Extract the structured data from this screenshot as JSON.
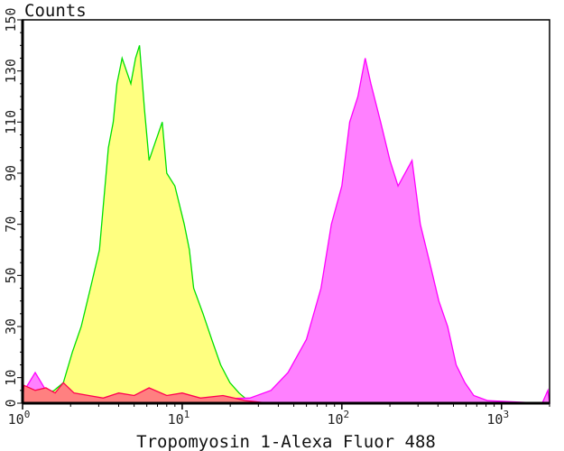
{
  "chart_data": {
    "type": "area",
    "title": "",
    "xlabel": "Tropomyosin 1-Alexa Fluor 488",
    "ylabel": "Counts",
    "x_scale": "log",
    "xlim": [
      1,
      2000
    ],
    "ylim": [
      0,
      150
    ],
    "x_ticks": [
      {
        "v": 1,
        "base": "10",
        "exp": "0"
      },
      {
        "v": 10,
        "base": "10",
        "exp": "1"
      },
      {
        "v": 100,
        "base": "10",
        "exp": "2"
      },
      {
        "v": 1000,
        "base": "10",
        "exp": "3"
      }
    ],
    "y_ticks": [
      "0",
      "10",
      "30",
      "50",
      "70",
      "90",
      "110",
      "130",
      "150"
    ],
    "grid": false,
    "series": [
      {
        "fill": "#ffff80",
        "stroke": "#00e000",
        "points": [
          [
            1,
            0
          ],
          [
            1.58,
            5
          ],
          [
            1.8,
            8
          ],
          [
            2.05,
            20
          ],
          [
            2.33,
            30
          ],
          [
            2.66,
            45
          ],
          [
            3.03,
            60
          ],
          [
            3.45,
            100
          ],
          [
            3.7,
            110
          ],
          [
            3.9,
            125
          ],
          [
            4.2,
            135
          ],
          [
            4.77,
            125
          ],
          [
            5.1,
            135
          ],
          [
            5.4,
            140
          ],
          [
            5.8,
            115
          ],
          [
            6.2,
            95
          ],
          [
            6.6,
            100
          ],
          [
            7.5,
            110
          ],
          [
            8.0,
            90
          ],
          [
            9,
            85
          ],
          [
            10.3,
            70
          ],
          [
            11.1,
            60
          ],
          [
            11.8,
            45
          ],
          [
            13.5,
            35
          ],
          [
            15.3,
            25
          ],
          [
            17.4,
            15
          ],
          [
            19.9,
            8
          ],
          [
            22.7,
            4
          ],
          [
            25.9,
            1
          ],
          [
            30,
            0
          ]
        ]
      },
      {
        "fill": "#ff80ff",
        "stroke": "#ff00ff",
        "points": [
          [
            1,
            0
          ],
          [
            1.05,
            6
          ],
          [
            1.2,
            12
          ],
          [
            1.4,
            5
          ],
          [
            1.7,
            2
          ],
          [
            5,
            1
          ],
          [
            26.5,
            2
          ],
          [
            36,
            5
          ],
          [
            46,
            12
          ],
          [
            60,
            25
          ],
          [
            74,
            45
          ],
          [
            86,
            70
          ],
          [
            100,
            85
          ],
          [
            112,
            110
          ],
          [
            126,
            120
          ],
          [
            140,
            135
          ],
          [
            152,
            125
          ],
          [
            175,
            110
          ],
          [
            200,
            95
          ],
          [
            225,
            85
          ],
          [
            275,
            95
          ],
          [
            310,
            70
          ],
          [
            355,
            55
          ],
          [
            405,
            40
          ],
          [
            460,
            30
          ],
          [
            520,
            15
          ],
          [
            590,
            8
          ],
          [
            670,
            3
          ],
          [
            820,
            1
          ],
          [
            1800,
            0
          ],
          [
            1950,
            5
          ],
          [
            2000,
            0
          ]
        ]
      },
      {
        "fill": "#ff8080",
        "stroke": "#ff0050",
        "points": [
          [
            1,
            0
          ],
          [
            1.02,
            7
          ],
          [
            1.2,
            5
          ],
          [
            1.4,
            6
          ],
          [
            1.6,
            4
          ],
          [
            1.8,
            8
          ],
          [
            2.1,
            4
          ],
          [
            2.6,
            3
          ],
          [
            3.2,
            2
          ],
          [
            4,
            4
          ],
          [
            5,
            3
          ],
          [
            6.2,
            6
          ],
          [
            8,
            3
          ],
          [
            10,
            4
          ],
          [
            13,
            2
          ],
          [
            18,
            3
          ],
          [
            25,
            1
          ],
          [
            35,
            0
          ],
          [
            2000,
            0
          ]
        ]
      }
    ]
  }
}
